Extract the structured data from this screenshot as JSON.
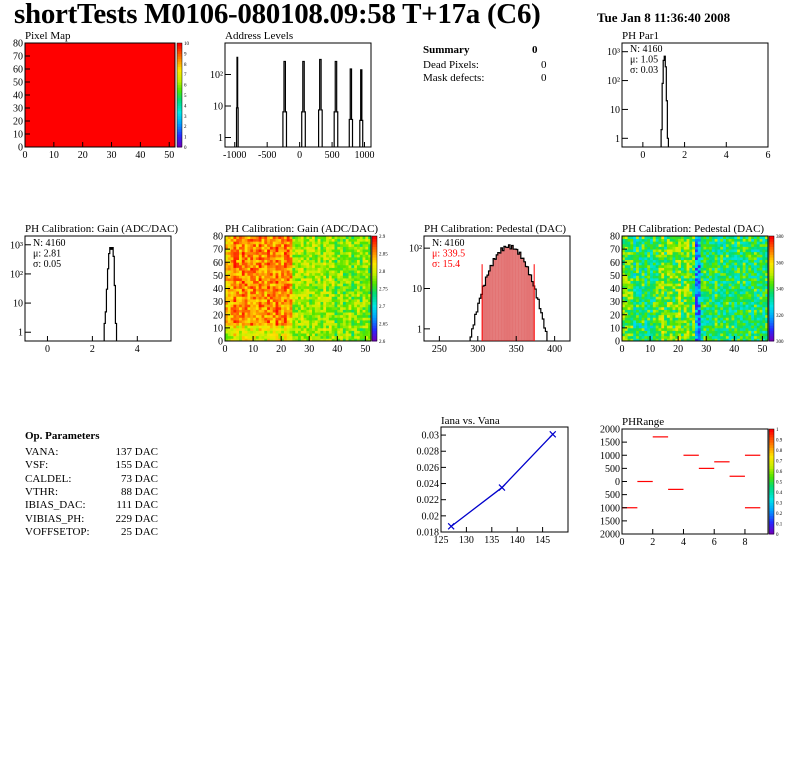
{
  "header": {
    "title": "shortTests M0106-080108.09:58 T+17a (C6)",
    "date": "Tue Jan  8 11:36:40 2008"
  },
  "summary": {
    "title": "Summary",
    "value": "0",
    "rows": [
      {
        "label": "Dead Pixels:",
        "value": "0"
      },
      {
        "label": "Mask defects:",
        "value": "0"
      }
    ]
  },
  "op_params": {
    "title": "Op. Parameters",
    "rows": [
      {
        "label": "VANA:",
        "value": "137 DAC"
      },
      {
        "label": "VSF:",
        "value": "155 DAC"
      },
      {
        "label": "CALDEL:",
        "value": "73 DAC"
      },
      {
        "label": "VTHR:",
        "value": "88 DAC"
      },
      {
        "label": "IBIAS_DAC:",
        "value": "111 DAC"
      },
      {
        "label": "VIBIAS_PH:",
        "value": "229 DAC"
      },
      {
        "label": "VOFFSETOP:",
        "value": "25 DAC"
      }
    ]
  },
  "colors": {
    "hist_line": "#000000",
    "stats_red": "#ff0000",
    "fit_line": "#0000cc",
    "pedestal_fill": "#cc0000"
  },
  "chart_data": [
    {
      "id": "pixel_map",
      "type": "heatmap",
      "title": "Pixel Map",
      "xlim": [
        0,
        52
      ],
      "ylim": [
        0,
        80
      ],
      "xticks": [
        0,
        10,
        20,
        30,
        40,
        50
      ],
      "yticks": [
        0,
        10,
        20,
        30,
        40,
        50,
        60,
        70,
        80
      ],
      "z_value": 10,
      "zlim": [
        0,
        10
      ],
      "zticks": [
        "0",
        "1",
        "2",
        "3",
        "4",
        "5",
        "6",
        "7",
        "8",
        "9",
        "10"
      ]
    },
    {
      "id": "address_levels",
      "type": "bar",
      "title": "Address Levels",
      "xlim": [
        -1150,
        1100
      ],
      "ylim_log": [
        0.5,
        1000
      ],
      "xticks": [
        -1000,
        -500,
        0,
        500,
        1000
      ],
      "yticks": [
        {
          "v": 1,
          "label": "1"
        },
        {
          "v": 10,
          "label": "10"
        },
        {
          "v": 100,
          "label": "10²"
        }
      ],
      "peaks": [
        {
          "x": -960,
          "y": 350,
          "w": 25
        },
        {
          "x": -230,
          "y": 260,
          "w": 55
        },
        {
          "x": 60,
          "y": 260,
          "w": 55
        },
        {
          "x": 320,
          "y": 300,
          "w": 55
        },
        {
          "x": 560,
          "y": 260,
          "w": 55
        },
        {
          "x": 790,
          "y": 150,
          "w": 50
        },
        {
          "x": 950,
          "y": 140,
          "w": 45
        }
      ]
    },
    {
      "id": "ph_par1",
      "type": "bar",
      "title": "PH Par1",
      "xlim": [
        -1,
        6
      ],
      "ylim_log": [
        0.5,
        2000
      ],
      "xticks": [
        0,
        2,
        4,
        6
      ],
      "yticks": [
        {
          "v": 1,
          "label": "1"
        },
        {
          "v": 10,
          "label": "10"
        },
        {
          "v": 100,
          "label": "10²"
        },
        {
          "v": 1000,
          "label": "10³"
        }
      ],
      "stats": [
        "N: 4160",
        "μ: 1.05",
        "σ: 0.03"
      ],
      "bins": [
        [
          0.9,
          2
        ],
        [
          0.95,
          80
        ],
        [
          1.0,
          500
        ],
        [
          1.05,
          700
        ],
        [
          1.1,
          300
        ],
        [
          1.15,
          20
        ],
        [
          1.2,
          1
        ]
      ]
    },
    {
      "id": "gain_1d",
      "type": "bar",
      "title": "PH Calibration: Gain (ADC/DAC)",
      "xlim": [
        -1,
        5.5
      ],
      "ylim_log": [
        0.5,
        2000
      ],
      "xticks": [
        0,
        2,
        4
      ],
      "yticks": [
        {
          "v": 1,
          "label": "1"
        },
        {
          "v": 10,
          "label": "10"
        },
        {
          "v": 100,
          "label": "10²"
        },
        {
          "v": 1000,
          "label": "10³"
        }
      ],
      "stats": [
        "N: 4160",
        "μ: 2.81",
        "σ: 0.05"
      ],
      "bins": [
        [
          2.55,
          2
        ],
        [
          2.6,
          5
        ],
        [
          2.65,
          30
        ],
        [
          2.7,
          150
        ],
        [
          2.75,
          500
        ],
        [
          2.8,
          800
        ],
        [
          2.85,
          700
        ],
        [
          2.9,
          800
        ],
        [
          2.95,
          400
        ],
        [
          3.0,
          40
        ],
        [
          3.05,
          2
        ]
      ]
    },
    {
      "id": "gain_map",
      "type": "heatmap",
      "title": "PH Calibration: Gain (ADC/DAC)",
      "xlim": [
        0,
        52
      ],
      "ylim": [
        0,
        80
      ],
      "xticks": [
        0,
        10,
        20,
        30,
        40,
        50
      ],
      "yticks": [
        0,
        10,
        20,
        30,
        40,
        50,
        60,
        70,
        80
      ],
      "ylabels": [
        "0",
        "10",
        "20",
        "30",
        "40",
        "50",
        "60",
        "70",
        "80"
      ],
      "zlim": [
        2.6,
        2.9
      ],
      "zticks": [
        "2.6",
        "2.65",
        "2.7",
        "2.75",
        "2.8",
        "2.85",
        "2.9"
      ]
    },
    {
      "id": "pedestal_1d",
      "type": "bar",
      "title": "PH Calibration: Pedestal (DAC)",
      "xlim": [
        230,
        420
      ],
      "ylim_log": [
        0.5,
        200
      ],
      "xticks": [
        250,
        300,
        350,
        400
      ],
      "yticks": [
        {
          "v": 1,
          "label": "1"
        },
        {
          "v": 10,
          "label": "10"
        },
        {
          "v": 100,
          "label": "10²"
        }
      ],
      "stats": [
        "N: 4160",
        "μ: 339.5",
        "σ: 15.4"
      ],
      "mean": 339.5,
      "sigma": 15.4
    },
    {
      "id": "pedestal_map",
      "type": "heatmap",
      "title": "PH Calibration: Pedestal (DAC)",
      "xlim": [
        0,
        52
      ],
      "ylim": [
        0,
        80
      ],
      "xticks": [
        0,
        10,
        20,
        30,
        40,
        50
      ],
      "yticks": [
        0,
        10,
        20,
        30,
        40,
        50,
        60,
        70,
        80
      ],
      "zlim": [
        300,
        380
      ],
      "zticks": [
        "300",
        "320",
        "340",
        "360",
        "380"
      ]
    },
    {
      "id": "iana_vana",
      "type": "line",
      "title": "Iana vs. Vana",
      "xlim": [
        125,
        150
      ],
      "ylim": [
        0.018,
        0.031
      ],
      "xticks": [
        125,
        130,
        135,
        140,
        145
      ],
      "yticks": [
        0.018,
        0.02,
        0.022,
        0.024,
        0.026,
        0.028,
        0.03
      ],
      "ytick_labels": [
        "0.018",
        "0.02",
        "0.022",
        "0.024",
        "0.026",
        "0.028",
        "0.03"
      ],
      "x": [
        127,
        137,
        147
      ],
      "y": [
        0.0187,
        0.0235,
        0.0301
      ]
    },
    {
      "id": "phrange",
      "type": "scatter",
      "title": "PHRange",
      "xlim": [
        0,
        9.5
      ],
      "ylim": [
        -2000,
        2000
      ],
      "xticks": [
        0,
        2,
        4,
        6,
        8
      ],
      "yticks": [
        -2000,
        -1500,
        -1000,
        -500,
        0,
        500,
        1000,
        1500,
        2000
      ],
      "ytick_labels": [
        "2000",
        "1500",
        "1000",
        "500",
        "0",
        "500",
        "1000",
        "1500",
        "2000"
      ],
      "segments": [
        {
          "x": [
            0,
            1
          ],
          "y": -1000
        },
        {
          "x": [
            1,
            2
          ],
          "y": 0
        },
        {
          "x": [
            2,
            3
          ],
          "y": 1700
        },
        {
          "x": [
            3,
            4
          ],
          "y": -300
        },
        {
          "x": [
            4,
            5
          ],
          "y": 1000
        },
        {
          "x": [
            5,
            6
          ],
          "y": 500
        },
        {
          "x": [
            6,
            7
          ],
          "y": 750
        },
        {
          "x": [
            7,
            8
          ],
          "y": 200
        },
        {
          "x": [
            8,
            9
          ],
          "y": 1000
        },
        {
          "x": [
            8,
            9
          ],
          "y": -1000
        }
      ],
      "zlim": [
        0,
        1
      ],
      "zticks": [
        "0",
        "0.1",
        "0.2",
        "0.3",
        "0.4",
        "0.5",
        "0.6",
        "0.7",
        "0.8",
        "0.9",
        "1"
      ]
    }
  ]
}
